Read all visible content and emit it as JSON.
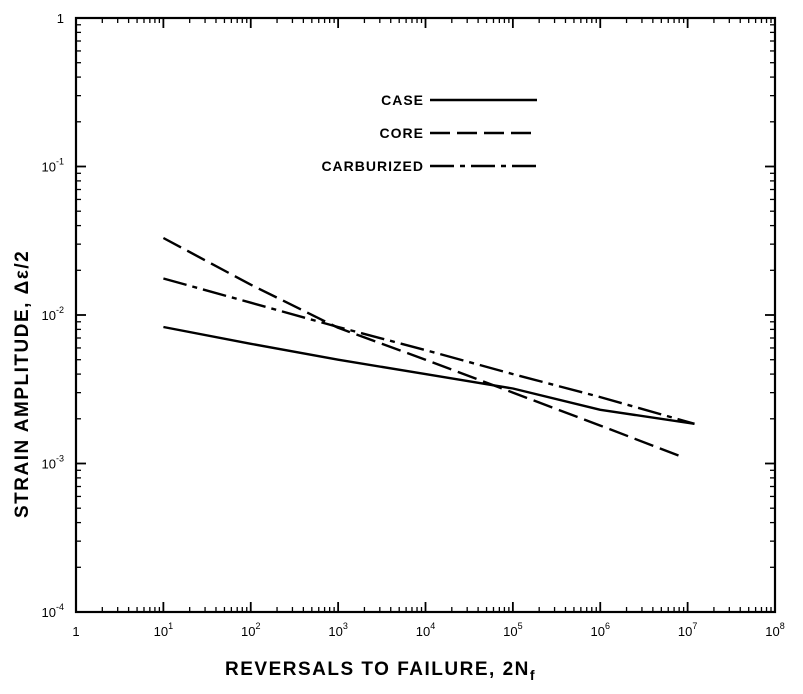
{
  "chart_data": {
    "type": "line",
    "xlabel": "REVERSALS TO FAILURE, 2N",
    "xlabel_subscript": "f",
    "ylabel": "STRAIN AMPLITUDE, Δε/2",
    "x_scale": "log",
    "y_scale": "log",
    "xlim": [
      1,
      100000000
    ],
    "ylim": [
      0.0001,
      1
    ],
    "grid": false,
    "legend_position": "top-center",
    "x_ticks": [
      {
        "value": 1,
        "base": "1",
        "exp": ""
      },
      {
        "value": 10,
        "base": "10",
        "exp": "1"
      },
      {
        "value": 100,
        "base": "10",
        "exp": "2"
      },
      {
        "value": 1000,
        "base": "10",
        "exp": "3"
      },
      {
        "value": 10000,
        "base": "10",
        "exp": "4"
      },
      {
        "value": 100000,
        "base": "10",
        "exp": "5"
      },
      {
        "value": 1000000,
        "base": "10",
        "exp": "6"
      },
      {
        "value": 10000000,
        "base": "10",
        "exp": "7"
      },
      {
        "value": 100000000,
        "base": "10",
        "exp": "8"
      }
    ],
    "y_ticks": [
      {
        "value": 1,
        "base": "1",
        "exp": ""
      },
      {
        "value": 0.1,
        "base": "10",
        "exp": "-1"
      },
      {
        "value": 0.01,
        "base": "10",
        "exp": "-2"
      },
      {
        "value": 0.001,
        "base": "10",
        "exp": "-3"
      },
      {
        "value": 0.0001,
        "base": "10",
        "exp": "-4"
      }
    ],
    "series": [
      {
        "name": "CASE",
        "style": "solid",
        "x": [
          10,
          100,
          1000,
          10000,
          100000,
          1000000,
          12000000
        ],
        "y": [
          0.0083,
          0.0064,
          0.005,
          0.004,
          0.0032,
          0.0023,
          0.00185
        ]
      },
      {
        "name": "CORE",
        "style": "dashed",
        "x": [
          10,
          100,
          1000,
          10000,
          100000,
          1000000,
          9000000
        ],
        "y": [
          0.033,
          0.016,
          0.0082,
          0.005,
          0.003,
          0.0018,
          0.0011
        ]
      },
      {
        "name": "CARBURIZED",
        "style": "dash-dot",
        "x": [
          10,
          100,
          1000,
          10000,
          100000,
          1000000,
          12000000
        ],
        "y": [
          0.0176,
          0.0121,
          0.0083,
          0.0058,
          0.004,
          0.0028,
          0.00185
        ]
      }
    ]
  }
}
